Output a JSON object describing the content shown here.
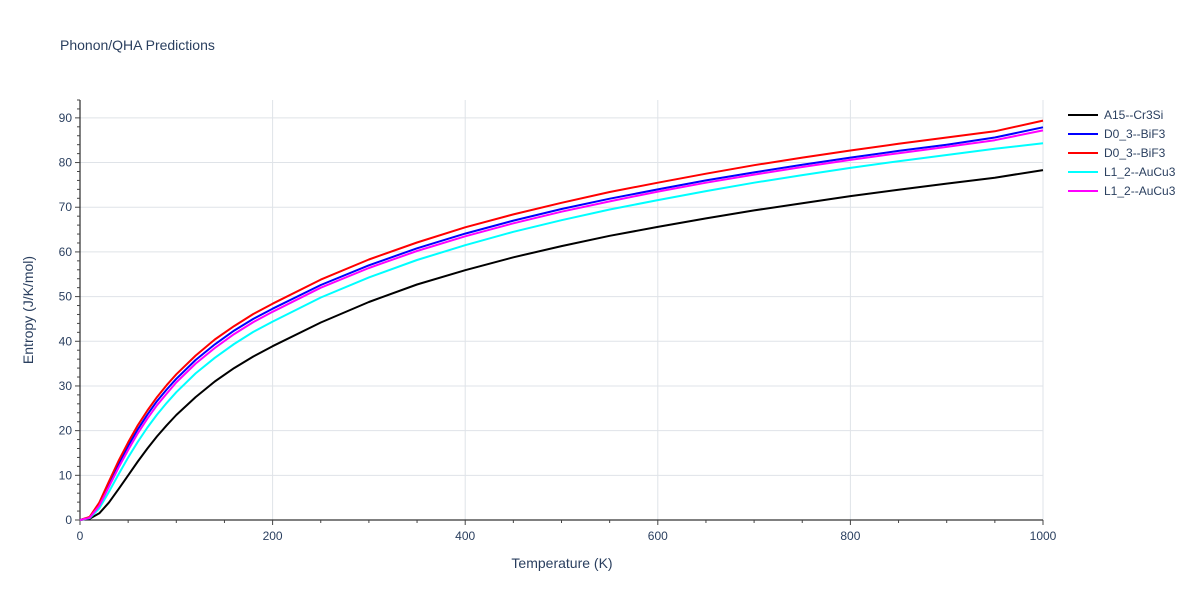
{
  "chart_data": {
    "type": "line",
    "title": "Phonon/QHA Predictions",
    "xlabel": "Temperature (K)",
    "ylabel": "Entropy (J/K/mol)",
    "xlim": [
      0,
      1000
    ],
    "ylim": [
      0,
      94
    ],
    "xticks": [
      0,
      200,
      400,
      600,
      800,
      1000
    ],
    "yticks": [
      0,
      10,
      20,
      30,
      40,
      50,
      60,
      70,
      80,
      90
    ],
    "grid": true,
    "legend_position": "top-right",
    "x": [
      0,
      10,
      20,
      30,
      40,
      50,
      60,
      70,
      80,
      90,
      100,
      120,
      140,
      160,
      180,
      200,
      250,
      300,
      350,
      400,
      450,
      500,
      550,
      600,
      650,
      700,
      750,
      800,
      850,
      900,
      950,
      1000
    ],
    "series": [
      {
        "name": "A15--Cr3Si",
        "color": "#000000",
        "values": [
          0,
          0.3,
          1.5,
          3.9,
          6.9,
          10.0,
          13.1,
          16.0,
          18.7,
          21.2,
          23.5,
          27.5,
          31.0,
          34.0,
          36.6,
          38.9,
          44.2,
          48.8,
          52.7,
          55.9,
          58.8,
          61.3,
          63.6,
          65.6,
          67.5,
          69.3,
          70.9,
          72.5,
          73.9,
          75.3,
          76.6,
          78.3
        ]
      },
      {
        "name": "D0_3--BiF3",
        "color": "#0000ff",
        "values": [
          0,
          0.6,
          3.6,
          8.1,
          12.5,
          16.6,
          20.3,
          23.6,
          26.6,
          29.2,
          31.6,
          35.8,
          39.3,
          42.4,
          45.0,
          47.3,
          52.6,
          57.0,
          60.8,
          64.1,
          67.0,
          69.6,
          71.9,
          74.0,
          76.0,
          77.8,
          79.5,
          81.1,
          82.6,
          84.0,
          85.6,
          87.9
        ]
      },
      {
        "name": "D0_3--BiF3",
        "color": "#ff0000",
        "values": [
          0,
          0.7,
          3.9,
          8.6,
          13.2,
          17.4,
          21.2,
          24.5,
          27.5,
          30.2,
          32.6,
          36.8,
          40.4,
          43.4,
          46.1,
          48.4,
          53.8,
          58.3,
          62.1,
          65.5,
          68.4,
          71.0,
          73.4,
          75.5,
          77.5,
          79.4,
          81.1,
          82.7,
          84.2,
          85.6,
          87.0,
          89.4
        ]
      },
      {
        "name": "L1_2--AuCu3",
        "color": "#00ffff",
        "values": [
          0,
          0.4,
          2.6,
          6.3,
          10.2,
          14.0,
          17.5,
          20.7,
          23.6,
          26.2,
          28.6,
          32.8,
          36.3,
          39.4,
          42.1,
          44.4,
          49.8,
          54.3,
          58.2,
          61.5,
          64.5,
          67.1,
          69.5,
          71.6,
          73.6,
          75.5,
          77.2,
          78.8,
          80.3,
          81.7,
          83.1,
          84.3
        ]
      },
      {
        "name": "L1_2--AuCu3",
        "color": "#ff00ff",
        "values": [
          0,
          0.5,
          3.2,
          7.4,
          11.7,
          15.7,
          19.4,
          22.7,
          25.7,
          28.3,
          30.8,
          35.0,
          38.5,
          41.6,
          44.3,
          46.6,
          52.0,
          56.4,
          60.2,
          63.5,
          66.4,
          69.0,
          71.3,
          73.5,
          75.5,
          77.3,
          79.0,
          80.6,
          82.1,
          83.5,
          85.0,
          87.2
        ]
      }
    ]
  }
}
